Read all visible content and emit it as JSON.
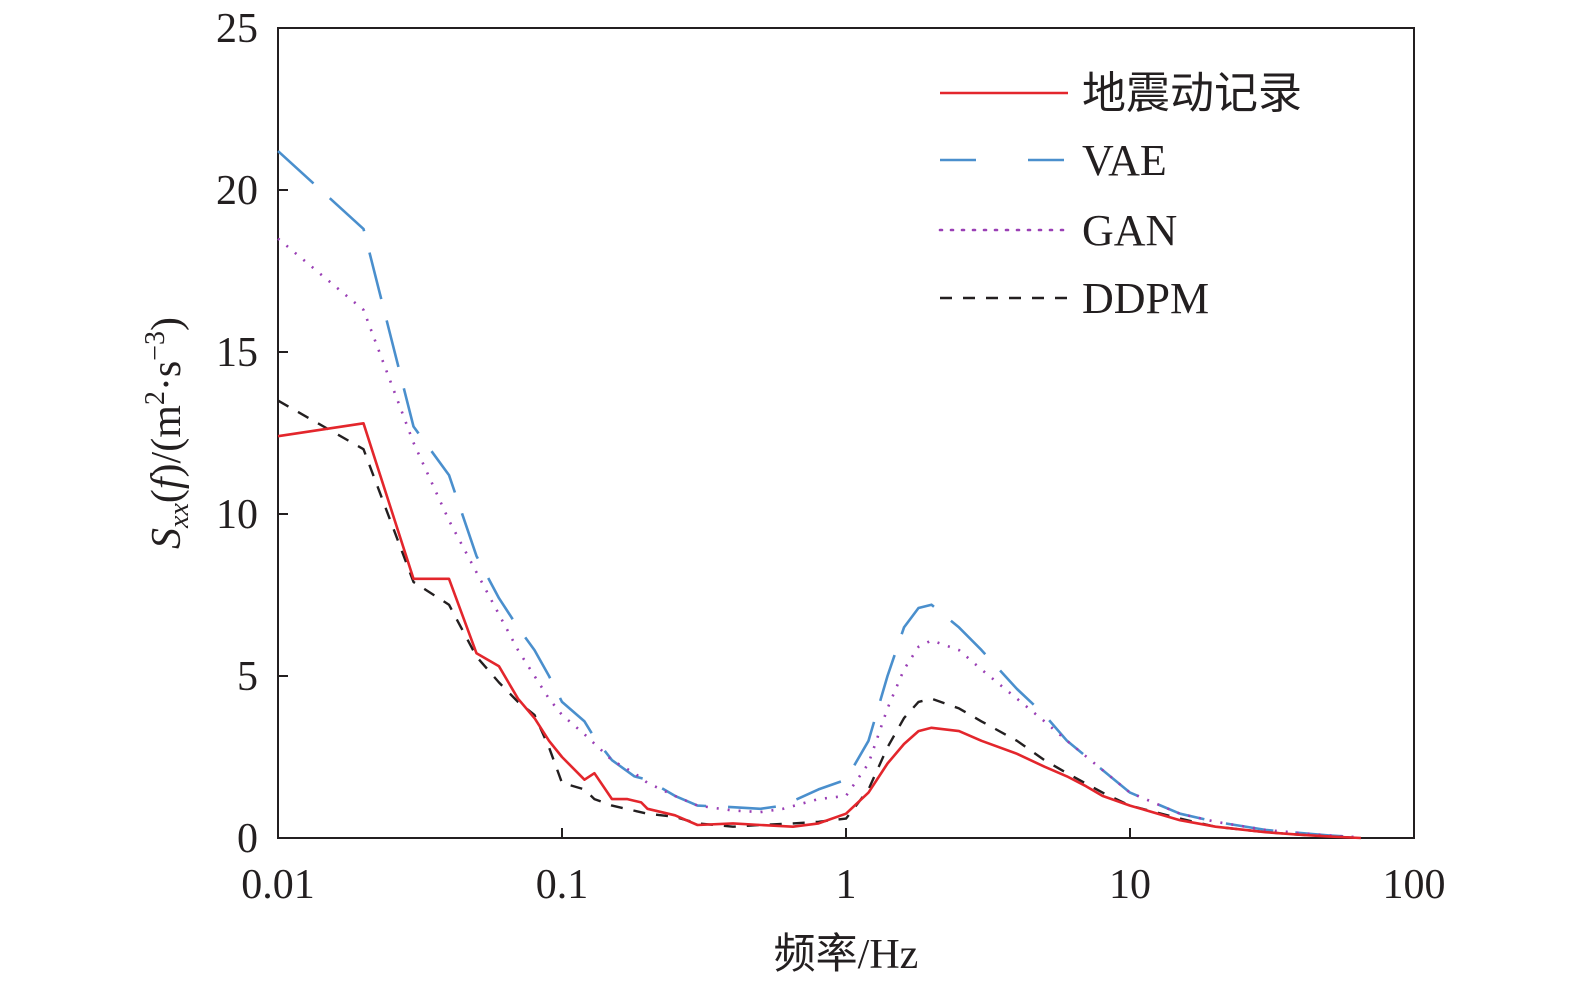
{
  "chart_data": {
    "type": "line",
    "title": "",
    "xlabel": "频率/Hz",
    "ylabel": {
      "main": "S",
      "sub": "xx",
      "paren_open": "(",
      "italic_f": "f",
      "paren_close": ")/(m",
      "sup1": "2",
      "mid": "·s",
      "sup2": "−3",
      "end": ")"
    },
    "xscale": "log",
    "xlim": [
      0.01,
      100
    ],
    "ylim": [
      0,
      25
    ],
    "grid": false,
    "legend_position": "top-right",
    "x_ticks": [
      {
        "value": 0.01,
        "label": "0.01"
      },
      {
        "value": 0.1,
        "label": "0.1"
      },
      {
        "value": 1,
        "label": "1"
      },
      {
        "value": 10,
        "label": "10"
      },
      {
        "value": 100,
        "label": "100"
      }
    ],
    "y_ticks": [
      {
        "value": 0,
        "label": "0"
      },
      {
        "value": 5,
        "label": "5"
      },
      {
        "value": 10,
        "label": "10"
      },
      {
        "value": 15,
        "label": "15"
      },
      {
        "value": 20,
        "label": "20"
      },
      {
        "value": 25,
        "label": "25"
      }
    ],
    "series": [
      {
        "name": "地震动记录",
        "color": "#e3262c",
        "style": "solid",
        "points": [
          [
            0.01,
            12.4
          ],
          [
            0.02,
            12.8
          ],
          [
            0.03,
            8.0
          ],
          [
            0.04,
            8.0
          ],
          [
            0.05,
            5.7
          ],
          [
            0.06,
            5.3
          ],
          [
            0.07,
            4.3
          ],
          [
            0.08,
            3.7
          ],
          [
            0.09,
            3.0
          ],
          [
            0.1,
            2.5
          ],
          [
            0.12,
            1.8
          ],
          [
            0.13,
            2.0
          ],
          [
            0.15,
            1.2
          ],
          [
            0.17,
            1.2
          ],
          [
            0.19,
            1.1
          ],
          [
            0.2,
            0.9
          ],
          [
            0.25,
            0.7
          ],
          [
            0.3,
            0.4
          ],
          [
            0.4,
            0.45
          ],
          [
            0.5,
            0.4
          ],
          [
            0.65,
            0.35
          ],
          [
            0.8,
            0.45
          ],
          [
            1.0,
            0.75
          ],
          [
            1.2,
            1.4
          ],
          [
            1.4,
            2.3
          ],
          [
            1.6,
            2.9
          ],
          [
            1.8,
            3.3
          ],
          [
            2.0,
            3.4
          ],
          [
            2.5,
            3.3
          ],
          [
            3,
            3.0
          ],
          [
            4,
            2.6
          ],
          [
            5,
            2.2
          ],
          [
            6,
            1.9
          ],
          [
            7,
            1.6
          ],
          [
            8,
            1.3
          ],
          [
            10,
            1.0
          ],
          [
            15,
            0.55
          ],
          [
            20,
            0.35
          ],
          [
            30,
            0.18
          ],
          [
            40,
            0.1
          ],
          [
            50,
            0.05
          ],
          [
            65,
            0.0
          ]
        ]
      },
      {
        "name": "VAE",
        "color": "#4a8fcd",
        "style": "dashed",
        "points": [
          [
            0.01,
            21.2
          ],
          [
            0.02,
            18.8
          ],
          [
            0.03,
            12.7
          ],
          [
            0.04,
            11.2
          ],
          [
            0.05,
            8.7
          ],
          [
            0.06,
            7.4
          ],
          [
            0.07,
            6.5
          ],
          [
            0.08,
            5.8
          ],
          [
            0.09,
            5.0
          ],
          [
            0.1,
            4.2
          ],
          [
            0.12,
            3.6
          ],
          [
            0.13,
            3.1
          ],
          [
            0.15,
            2.4
          ],
          [
            0.18,
            1.9
          ],
          [
            0.2,
            1.8
          ],
          [
            0.25,
            1.3
          ],
          [
            0.3,
            1.0
          ],
          [
            0.4,
            0.95
          ],
          [
            0.5,
            0.9
          ],
          [
            0.6,
            1.0
          ],
          [
            0.8,
            1.5
          ],
          [
            1.0,
            1.8
          ],
          [
            1.2,
            3.0
          ],
          [
            1.4,
            5.0
          ],
          [
            1.6,
            6.5
          ],
          [
            1.8,
            7.1
          ],
          [
            2.0,
            7.2
          ],
          [
            2.5,
            6.5
          ],
          [
            3,
            5.8
          ],
          [
            4,
            4.6
          ],
          [
            5,
            3.8
          ],
          [
            6,
            3.0
          ],
          [
            8,
            2.1
          ],
          [
            10,
            1.4
          ],
          [
            15,
            0.75
          ],
          [
            20,
            0.5
          ],
          [
            30,
            0.25
          ],
          [
            40,
            0.15
          ],
          [
            50,
            0.08
          ],
          [
            65,
            0.02
          ]
        ]
      },
      {
        "name": "GAN",
        "color": "#9a3fb5",
        "style": "dotted",
        "points": [
          [
            0.01,
            18.5
          ],
          [
            0.02,
            16.3
          ],
          [
            0.03,
            12.2
          ],
          [
            0.04,
            9.8
          ],
          [
            0.05,
            8.2
          ],
          [
            0.06,
            6.9
          ],
          [
            0.07,
            5.8
          ],
          [
            0.08,
            5.0
          ],
          [
            0.09,
            4.3
          ],
          [
            0.1,
            3.8
          ],
          [
            0.12,
            3.2
          ],
          [
            0.15,
            2.4
          ],
          [
            0.18,
            2.0
          ],
          [
            0.2,
            1.7
          ],
          [
            0.25,
            1.3
          ],
          [
            0.3,
            1.0
          ],
          [
            0.4,
            0.85
          ],
          [
            0.5,
            0.8
          ],
          [
            0.6,
            0.9
          ],
          [
            0.8,
            1.2
          ],
          [
            1.0,
            1.3
          ],
          [
            1.2,
            2.3
          ],
          [
            1.4,
            4.0
          ],
          [
            1.6,
            5.2
          ],
          [
            1.8,
            5.9
          ],
          [
            2.0,
            6.1
          ],
          [
            2.5,
            5.8
          ],
          [
            3,
            5.2
          ],
          [
            4,
            4.3
          ],
          [
            5,
            3.6
          ],
          [
            6,
            3.0
          ],
          [
            8,
            2.1
          ],
          [
            10,
            1.4
          ],
          [
            15,
            0.75
          ],
          [
            20,
            0.5
          ],
          [
            30,
            0.25
          ],
          [
            40,
            0.15
          ],
          [
            50,
            0.08
          ],
          [
            65,
            0.02
          ]
        ]
      },
      {
        "name": "DDPM",
        "color": "#231f20",
        "style": "dashed-short",
        "points": [
          [
            0.01,
            13.5
          ],
          [
            0.02,
            12.0
          ],
          [
            0.03,
            7.9
          ],
          [
            0.04,
            7.2
          ],
          [
            0.05,
            5.6
          ],
          [
            0.06,
            4.8
          ],
          [
            0.07,
            4.2
          ],
          [
            0.08,
            3.8
          ],
          [
            0.09,
            2.8
          ],
          [
            0.1,
            1.7
          ],
          [
            0.12,
            1.5
          ],
          [
            0.13,
            1.2
          ],
          [
            0.15,
            1.0
          ],
          [
            0.2,
            0.75
          ],
          [
            0.25,
            0.65
          ],
          [
            0.3,
            0.45
          ],
          [
            0.4,
            0.35
          ],
          [
            0.5,
            0.4
          ],
          [
            0.65,
            0.45
          ],
          [
            0.8,
            0.5
          ],
          [
            1.0,
            0.6
          ],
          [
            1.2,
            1.5
          ],
          [
            1.4,
            2.8
          ],
          [
            1.6,
            3.7
          ],
          [
            1.8,
            4.2
          ],
          [
            2.0,
            4.3
          ],
          [
            2.5,
            4.0
          ],
          [
            3,
            3.6
          ],
          [
            4,
            3.0
          ],
          [
            5,
            2.4
          ],
          [
            6,
            2.0
          ],
          [
            8,
            1.4
          ],
          [
            10,
            1.0
          ],
          [
            15,
            0.6
          ],
          [
            20,
            0.35
          ],
          [
            30,
            0.18
          ],
          [
            40,
            0.1
          ],
          [
            50,
            0.05
          ],
          [
            65,
            0.0
          ]
        ]
      }
    ]
  }
}
